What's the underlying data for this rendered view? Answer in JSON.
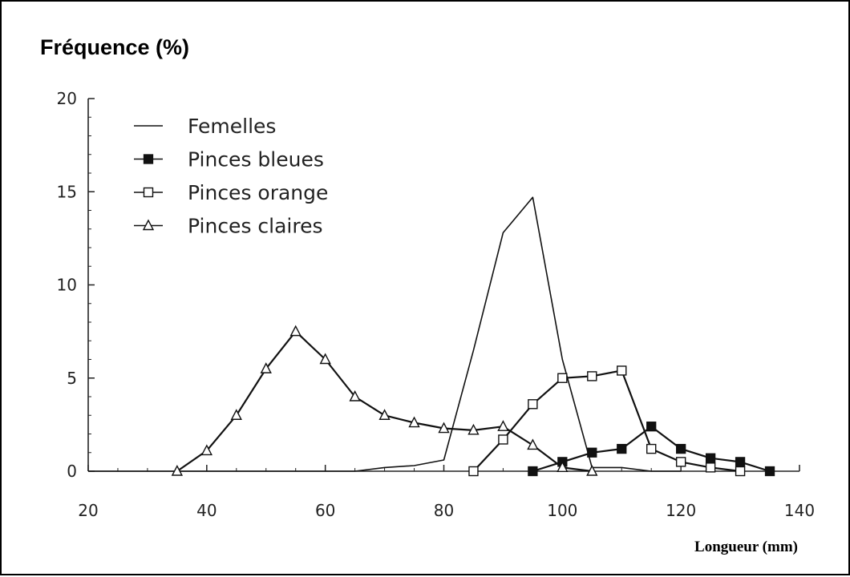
{
  "chart_data": {
    "type": "line",
    "ylabel": "Fréquence (%)",
    "xlabel": "Longueur (mm)",
    "xlim": [
      20,
      140
    ],
    "ylim": [
      0,
      20
    ],
    "x_ticks": [
      20,
      40,
      60,
      80,
      100,
      120,
      140
    ],
    "y_ticks": [
      0,
      5,
      10,
      15,
      20
    ],
    "grid": false,
    "legend_position": "top-left",
    "series": [
      {
        "name": "Femelles",
        "marker": "none",
        "x": [
          20,
          65,
          70,
          75,
          80,
          85,
          90,
          95,
          100,
          105,
          110,
          115,
          120
        ],
        "y": [
          0,
          0,
          0.2,
          0.3,
          0.6,
          6.5,
          12.8,
          14.7,
          6.0,
          0.2,
          0.2,
          0,
          0
        ]
      },
      {
        "name": "Pinces bleues",
        "marker": "filled-square",
        "x": [
          95,
          100,
          105,
          110,
          115,
          120,
          125,
          130,
          135
        ],
        "y": [
          0,
          0.5,
          1.0,
          1.2,
          2.4,
          1.2,
          0.7,
          0.5,
          0
        ]
      },
      {
        "name": "Pinces orange",
        "marker": "open-square",
        "x": [
          85,
          90,
          95,
          100,
          105,
          110,
          115,
          120,
          125,
          130
        ],
        "y": [
          0,
          1.7,
          3.6,
          5.0,
          5.1,
          5.4,
          1.2,
          0.5,
          0.2,
          0
        ]
      },
      {
        "name": "Pinces claires",
        "marker": "open-triangle",
        "x": [
          35,
          40,
          45,
          50,
          55,
          60,
          65,
          70,
          75,
          80,
          85,
          90,
          95,
          100,
          105
        ],
        "y": [
          0,
          1.1,
          3.0,
          5.5,
          7.5,
          6.0,
          4.0,
          3.0,
          2.6,
          2.3,
          2.2,
          2.4,
          1.4,
          0.2,
          0
        ]
      }
    ]
  }
}
